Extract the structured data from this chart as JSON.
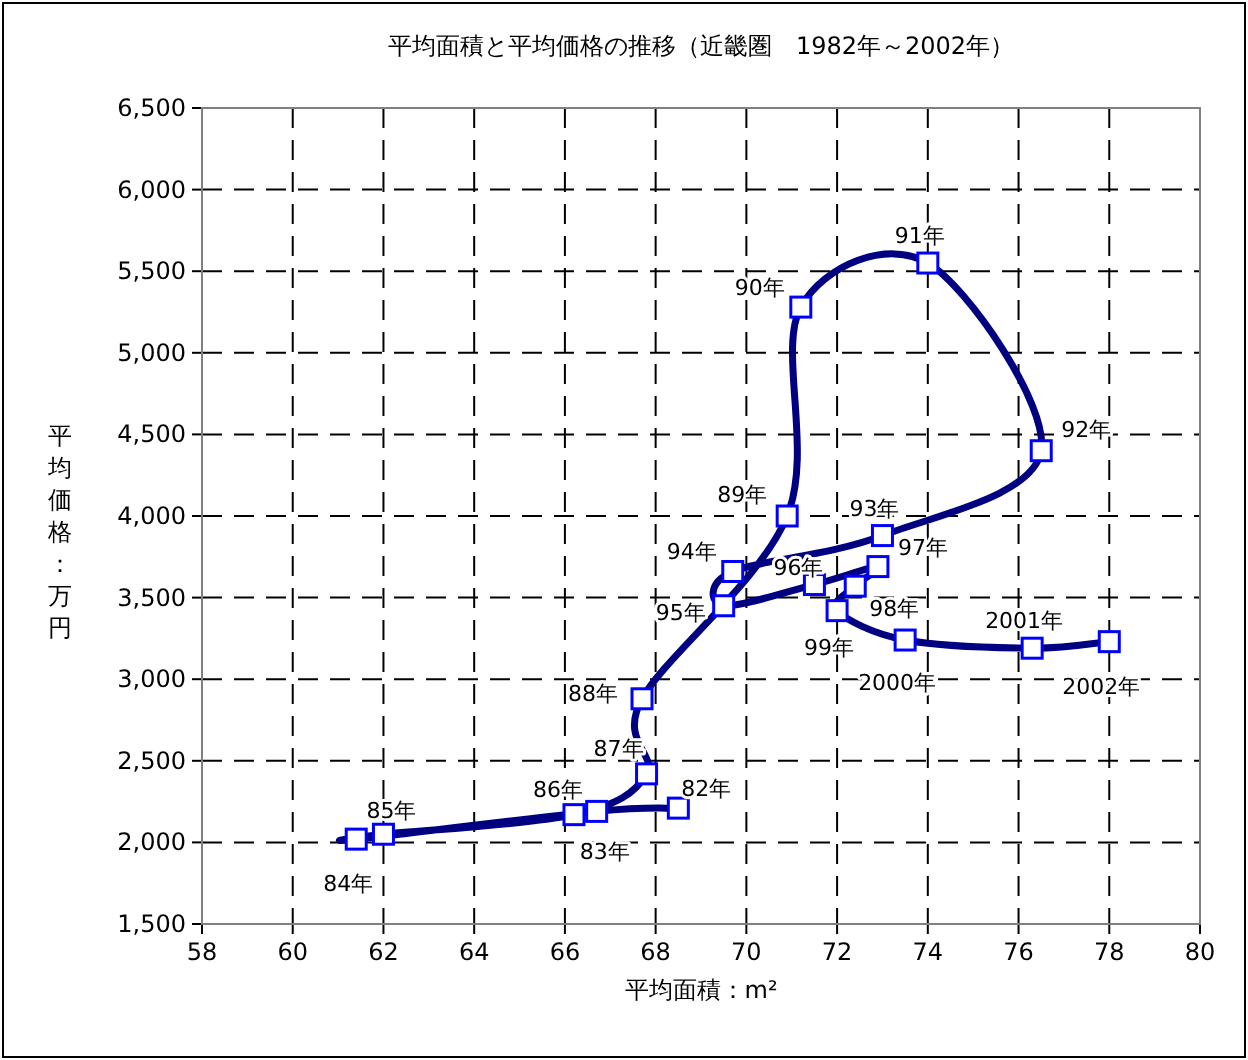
{
  "chart_data": {
    "type": "line",
    "title": "平均面積と平均価格の推移（近畿圏　1982年～2002年）",
    "xlabel": "平均面積：m²",
    "ylabel": "平均価格：万円",
    "x": [
      68.5,
      66.7,
      61.4,
      62.0,
      66.2,
      67.8,
      67.7,
      70.9,
      71.2,
      74.0,
      76.5,
      73.0,
      69.7,
      69.5,
      71.5,
      72.9,
      72.4,
      72.0,
      73.5,
      76.3,
      78.0
    ],
    "series": [
      {
        "color": "#000080",
        "values": [
          2210,
          2190,
          2020,
          2050,
          2170,
          2420,
          2880,
          4000,
          5280,
          5550,
          4400,
          3880,
          3660,
          3450,
          3580,
          3690,
          3570,
          3420,
          3240,
          3190,
          3230
        ]
      }
    ],
    "annotations": [
      {
        "text": "82年",
        "x": 68.5,
        "y": 2210
      },
      {
        "text": "83年",
        "x": 66.7,
        "y": 2190
      },
      {
        "text": "84年",
        "x": 61.4,
        "y": 2020
      },
      {
        "text": "85年",
        "x": 62.0,
        "y": 2050
      },
      {
        "text": "86年",
        "x": 66.2,
        "y": 2170
      },
      {
        "text": "87年",
        "x": 67.8,
        "y": 2420
      },
      {
        "text": "88年",
        "x": 67.7,
        "y": 2880
      },
      {
        "text": "89年",
        "x": 70.9,
        "y": 4000
      },
      {
        "text": "90年",
        "x": 71.2,
        "y": 5280
      },
      {
        "text": "91年",
        "x": 74.0,
        "y": 5550
      },
      {
        "text": "92年",
        "x": 76.5,
        "y": 4400
      },
      {
        "text": "93年",
        "x": 73.0,
        "y": 3880
      },
      {
        "text": "94年",
        "x": 69.7,
        "y": 3660
      },
      {
        "text": "95年",
        "x": 69.5,
        "y": 3450
      },
      {
        "text": "96年",
        "x": 71.5,
        "y": 3580
      },
      {
        "text": "97年",
        "x": 72.9,
        "y": 3690
      },
      {
        "text": "98年",
        "x": 72.4,
        "y": 3570
      },
      {
        "text": "99年",
        "x": 72.0,
        "y": 3420
      },
      {
        "text": "2000年",
        "x": 73.5,
        "y": 3240
      },
      {
        "text": "2001年",
        "x": 76.3,
        "y": 3190
      },
      {
        "text": "2002年",
        "x": 78.0,
        "y": 3230
      }
    ],
    "marker": "square",
    "line_style": "solid",
    "grid": true,
    "xlim": [
      58,
      80
    ],
    "xticks": [
      58,
      60,
      62,
      64,
      66,
      68,
      70,
      72,
      74,
      76,
      78,
      80
    ],
    "ylim": [
      1500,
      6500
    ],
    "yticks": [
      {
        "value": 1500,
        "label": "1,500"
      },
      {
        "value": 2000,
        "label": "2,000"
      },
      {
        "value": 2500,
        "label": "2,500"
      },
      {
        "value": 3000,
        "label": "3,000"
      },
      {
        "value": 3500,
        "label": "3,500"
      },
      {
        "value": 4000,
        "label": "4,000"
      },
      {
        "value": 4500,
        "label": "4,500"
      },
      {
        "value": 5000,
        "label": "5,000"
      },
      {
        "value": 5500,
        "label": "5,500"
      },
      {
        "value": 6000,
        "label": "6,000"
      },
      {
        "value": 6500,
        "label": "6,500"
      }
    ]
  }
}
